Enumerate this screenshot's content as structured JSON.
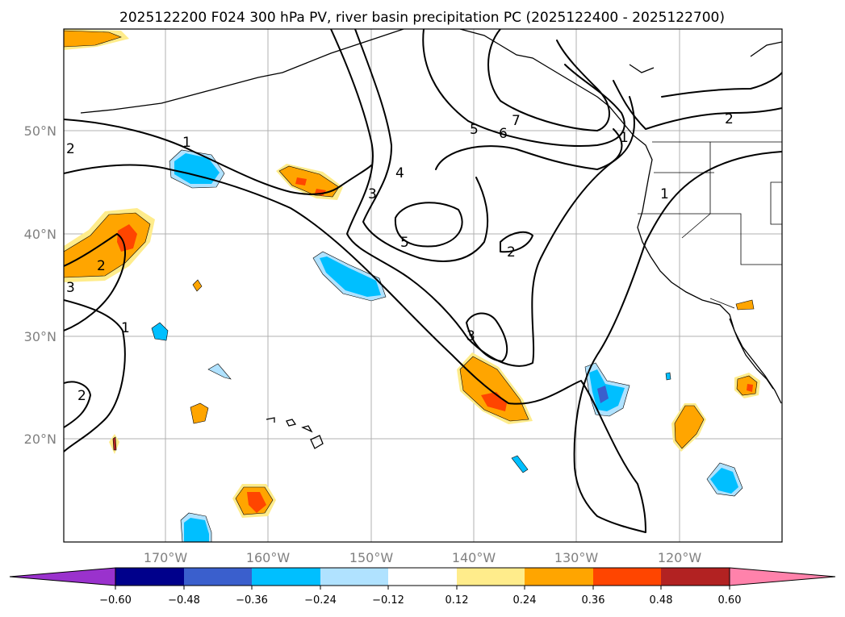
{
  "title": "2025122200 F024 300 hPa PV, river basin precipitation PC (2025122400 - 2025122700)",
  "lat_labels": [
    "50°N",
    "40°N",
    "30°N",
    "20°N"
  ],
  "lon_labels": [
    "170°W",
    "160°W",
    "150°W",
    "140°W",
    "130°W",
    "120°W"
  ],
  "pv_contour_labels": [
    "1",
    "2",
    "2",
    "3",
    "3",
    "4",
    "5",
    "5",
    "6",
    "7",
    "1",
    "2",
    "1",
    "2",
    "3",
    "1",
    "2"
  ],
  "colorbar": {
    "tick_labels": [
      "−0.60",
      "−0.48",
      "−0.36",
      "−0.24",
      "−0.12",
      "0.12",
      "0.24",
      "0.36",
      "0.48",
      "0.60"
    ],
    "colors": [
      "#9a32cd",
      "#00008b",
      "#3a5fcd",
      "#00bfff",
      "#b0e2ff",
      "#ffffff",
      "#ffec8b",
      "#ffa500",
      "#ff4500",
      "#b22222",
      "#ff82ab"
    ]
  }
}
